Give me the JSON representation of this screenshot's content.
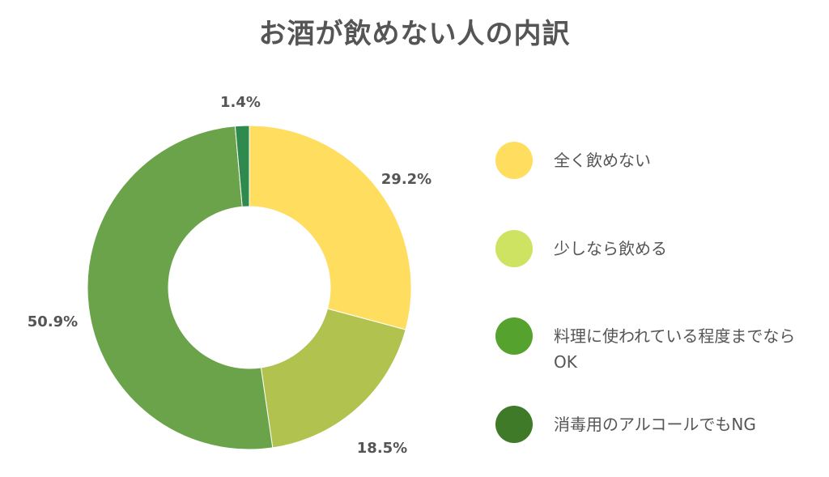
{
  "chart_data": {
    "type": "pie",
    "donut": true,
    "title": "お酒が飲めない人の内訳",
    "categories": [
      "全く飲めない",
      "少しなら飲める",
      "料理に使われている程度までならOK",
      "消毒用のアルコールでもNG"
    ],
    "values": [
      29.2,
      18.5,
      50.9,
      1.4
    ],
    "value_labels": [
      "29.2%",
      "18.5%",
      "50.9%",
      "1.4%"
    ],
    "slice_colors": [
      "#ffdd5e",
      "#b1c24f",
      "#6aa34a",
      "#2f8a4e"
    ],
    "legend": {
      "placement": "right",
      "entries": [
        {
          "label": "全く飲めない",
          "color": "#ffdd5e"
        },
        {
          "label": "少しなら飲める",
          "color": "#cde361"
        },
        {
          "label": "料理に使われている程度までならOK",
          "color": "#55a32e"
        },
        {
          "label": "消毒用のアルコールでもNG",
          "color": "#3f7a29"
        }
      ]
    }
  }
}
